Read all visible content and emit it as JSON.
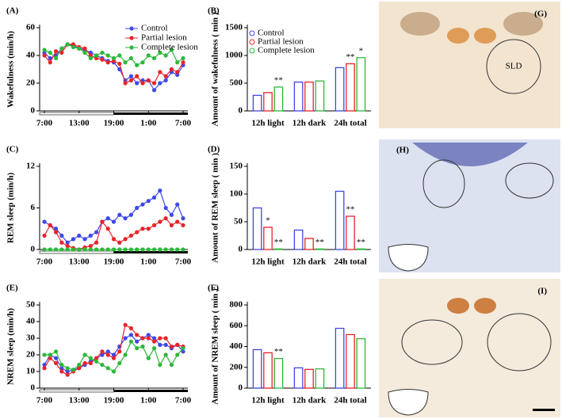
{
  "chart_data": [
    {
      "type": "line",
      "panel_label": "(A)",
      "ylabel": "Wakefulness  (min/h)",
      "legend": true,
      "categories": [
        "7:00",
        null,
        null,
        null,
        null,
        null,
        "13:00",
        null,
        null,
        null,
        null,
        null,
        "19:00",
        null,
        null,
        null,
        null,
        null,
        "1:00",
        null,
        null,
        null,
        null,
        null,
        "7:00"
      ],
      "ylim": [
        0,
        60
      ],
      "yticks": [
        0,
        20,
        40,
        60
      ],
      "series": [
        {
          "name": "Control",
          "color": "#3f48e8",
          "values": [
            42,
            38,
            40,
            45,
            48,
            47,
            45,
            44,
            42,
            40,
            38,
            36,
            35,
            30,
            22,
            25,
            20,
            22,
            22,
            15,
            20,
            22,
            28,
            26,
            33
          ]
        },
        {
          "name": "Partial lesion",
          "color": "#e8242b",
          "values": [
            40,
            35,
            43,
            42,
            48,
            48,
            46,
            45,
            40,
            38,
            37,
            35,
            36,
            34,
            20,
            22,
            25,
            20,
            22,
            20,
            28,
            25,
            30,
            28,
            35
          ]
        },
        {
          "name": "Complete lesion",
          "color": "#2db83a",
          "values": [
            44,
            42,
            38,
            45,
            48,
            46,
            45,
            42,
            38,
            40,
            42,
            40,
            38,
            40,
            35,
            38,
            33,
            35,
            40,
            38,
            42,
            40,
            44,
            35,
            38
          ]
        }
      ]
    },
    {
      "type": "bar",
      "panel_label": "(B)",
      "ylabel": "Amount of wakefulness ( min )",
      "legend": true,
      "categories": [
        "12h light",
        "12h dark",
        "24h total"
      ],
      "ylim": [
        0,
        1500
      ],
      "yticks": [
        0,
        500,
        1000,
        1500
      ],
      "series": [
        {
          "name": "Control",
          "color": "#3f48e8",
          "values": [
            280,
            520,
            780
          ],
          "significance": [
            null,
            null,
            null
          ]
        },
        {
          "name": "Partial lesion",
          "color": "#e8242b",
          "values": [
            330,
            520,
            850
          ],
          "significance": [
            null,
            null,
            "**"
          ]
        },
        {
          "name": "Complete lesion",
          "color": "#2db83a",
          "values": [
            430,
            540,
            960
          ],
          "significance": [
            "**",
            null,
            "*"
          ]
        }
      ]
    },
    {
      "type": "line",
      "panel_label": "(C)",
      "ylabel": "REM sleep  (min/h)",
      "legend": false,
      "categories": [
        "7:00",
        null,
        null,
        null,
        null,
        null,
        "13:00",
        null,
        null,
        null,
        null,
        null,
        "19:00",
        null,
        null,
        null,
        null,
        null,
        "1:00",
        null,
        null,
        null,
        null,
        null,
        "7:00"
      ],
      "ylim": [
        0,
        12
      ],
      "yticks": [
        0,
        6,
        12
      ],
      "series": [
        {
          "color": "#3f48e8",
          "values": [
            4,
            3.5,
            3,
            2,
            1,
            1.5,
            2,
            1.5,
            2,
            2.5,
            4,
            4.5,
            4,
            5,
            4.5,
            5,
            6,
            6.5,
            7,
            7.5,
            8.5,
            6,
            5,
            6.5,
            4.5
          ]
        },
        {
          "color": "#e8242b",
          "values": [
            2,
            3.5,
            2.5,
            1,
            0.5,
            0.2,
            0,
            0.3,
            0.5,
            1,
            4,
            3,
            1.5,
            1,
            1.5,
            2,
            2.5,
            3,
            3,
            3.5,
            4,
            4.5,
            3.5,
            4,
            3.5
          ]
        },
        {
          "color": "#2db83a",
          "values": [
            0,
            0,
            0,
            0,
            0,
            0,
            0,
            0,
            0,
            0,
            0,
            0,
            0,
            0,
            0,
            0,
            0,
            0,
            0,
            0,
            0,
            0,
            0,
            0,
            0
          ]
        }
      ]
    },
    {
      "type": "bar",
      "panel_label": "(D)",
      "ylabel": "Amount of REM sleep  ( min )",
      "legend": false,
      "categories": [
        "12h light",
        "12h dark",
        "24h total"
      ],
      "ylim": [
        0,
        150
      ],
      "yticks": [
        0,
        50,
        100,
        150
      ],
      "series": [
        {
          "color": "#3f48e8",
          "values": [
            75,
            35,
            105
          ],
          "significance": [
            null,
            null,
            null
          ]
        },
        {
          "color": "#e8242b",
          "values": [
            40,
            20,
            60
          ],
          "significance": [
            "*",
            null,
            "**"
          ]
        },
        {
          "color": "#2db83a",
          "values": [
            1,
            1,
            1
          ],
          "significance": [
            "**",
            "**",
            "**"
          ]
        }
      ]
    },
    {
      "type": "line",
      "panel_label": "(E)",
      "ylabel": "NREM sleep  (min/h)",
      "legend": false,
      "categories": [
        "7:00",
        null,
        null,
        null,
        null,
        null,
        "13:00",
        null,
        null,
        null,
        null,
        null,
        "19:00",
        null,
        null,
        null,
        null,
        null,
        "1:00",
        null,
        null,
        null,
        null,
        null,
        "7:00"
      ],
      "ylim": [
        0,
        50
      ],
      "yticks": [
        0,
        10,
        20,
        30,
        40,
        50
      ],
      "series": [
        {
          "color": "#3f48e8",
          "values": [
            14,
            20,
            18,
            12,
            10,
            11,
            12,
            14,
            16,
            18,
            20,
            22,
            20,
            25,
            30,
            32,
            28,
            30,
            32,
            30,
            26,
            26,
            24,
            26,
            22
          ]
        },
        {
          "color": "#e8242b",
          "values": [
            12,
            18,
            15,
            10,
            8,
            10,
            12,
            15,
            15,
            18,
            22,
            20,
            18,
            22,
            38,
            36,
            32,
            30,
            30,
            28,
            30,
            30,
            25,
            26,
            25
          ]
        },
        {
          "color": "#2db83a",
          "values": [
            20,
            20,
            22,
            14,
            12,
            11,
            14,
            20,
            18,
            16,
            14,
            12,
            10,
            15,
            20,
            28,
            24,
            25,
            18,
            24,
            14,
            20,
            14,
            20,
            24
          ]
        }
      ]
    },
    {
      "type": "bar",
      "panel_label": "(F)",
      "ylabel": "Amount of NREM sleep ( min )",
      "legend": false,
      "categories": [
        "12h light",
        "12h dark",
        "24h total"
      ],
      "ylim": [
        0,
        800
      ],
      "yticks": [
        0,
        200,
        400,
        600,
        800
      ],
      "series": [
        {
          "color": "#3f48e8",
          "values": [
            370,
            195,
            575
          ],
          "significance": [
            null,
            null,
            null
          ]
        },
        {
          "color": "#e8242b",
          "values": [
            340,
            180,
            515
          ],
          "significance": [
            null,
            null,
            null
          ]
        },
        {
          "color": "#2db83a",
          "values": [
            285,
            185,
            475
          ],
          "significance": [
            "**",
            null,
            null
          ]
        }
      ]
    }
  ],
  "images": [
    {
      "label": "(G)",
      "annotation": "SLD"
    },
    {
      "label": "(H)"
    },
    {
      "label": "(I)"
    }
  ]
}
